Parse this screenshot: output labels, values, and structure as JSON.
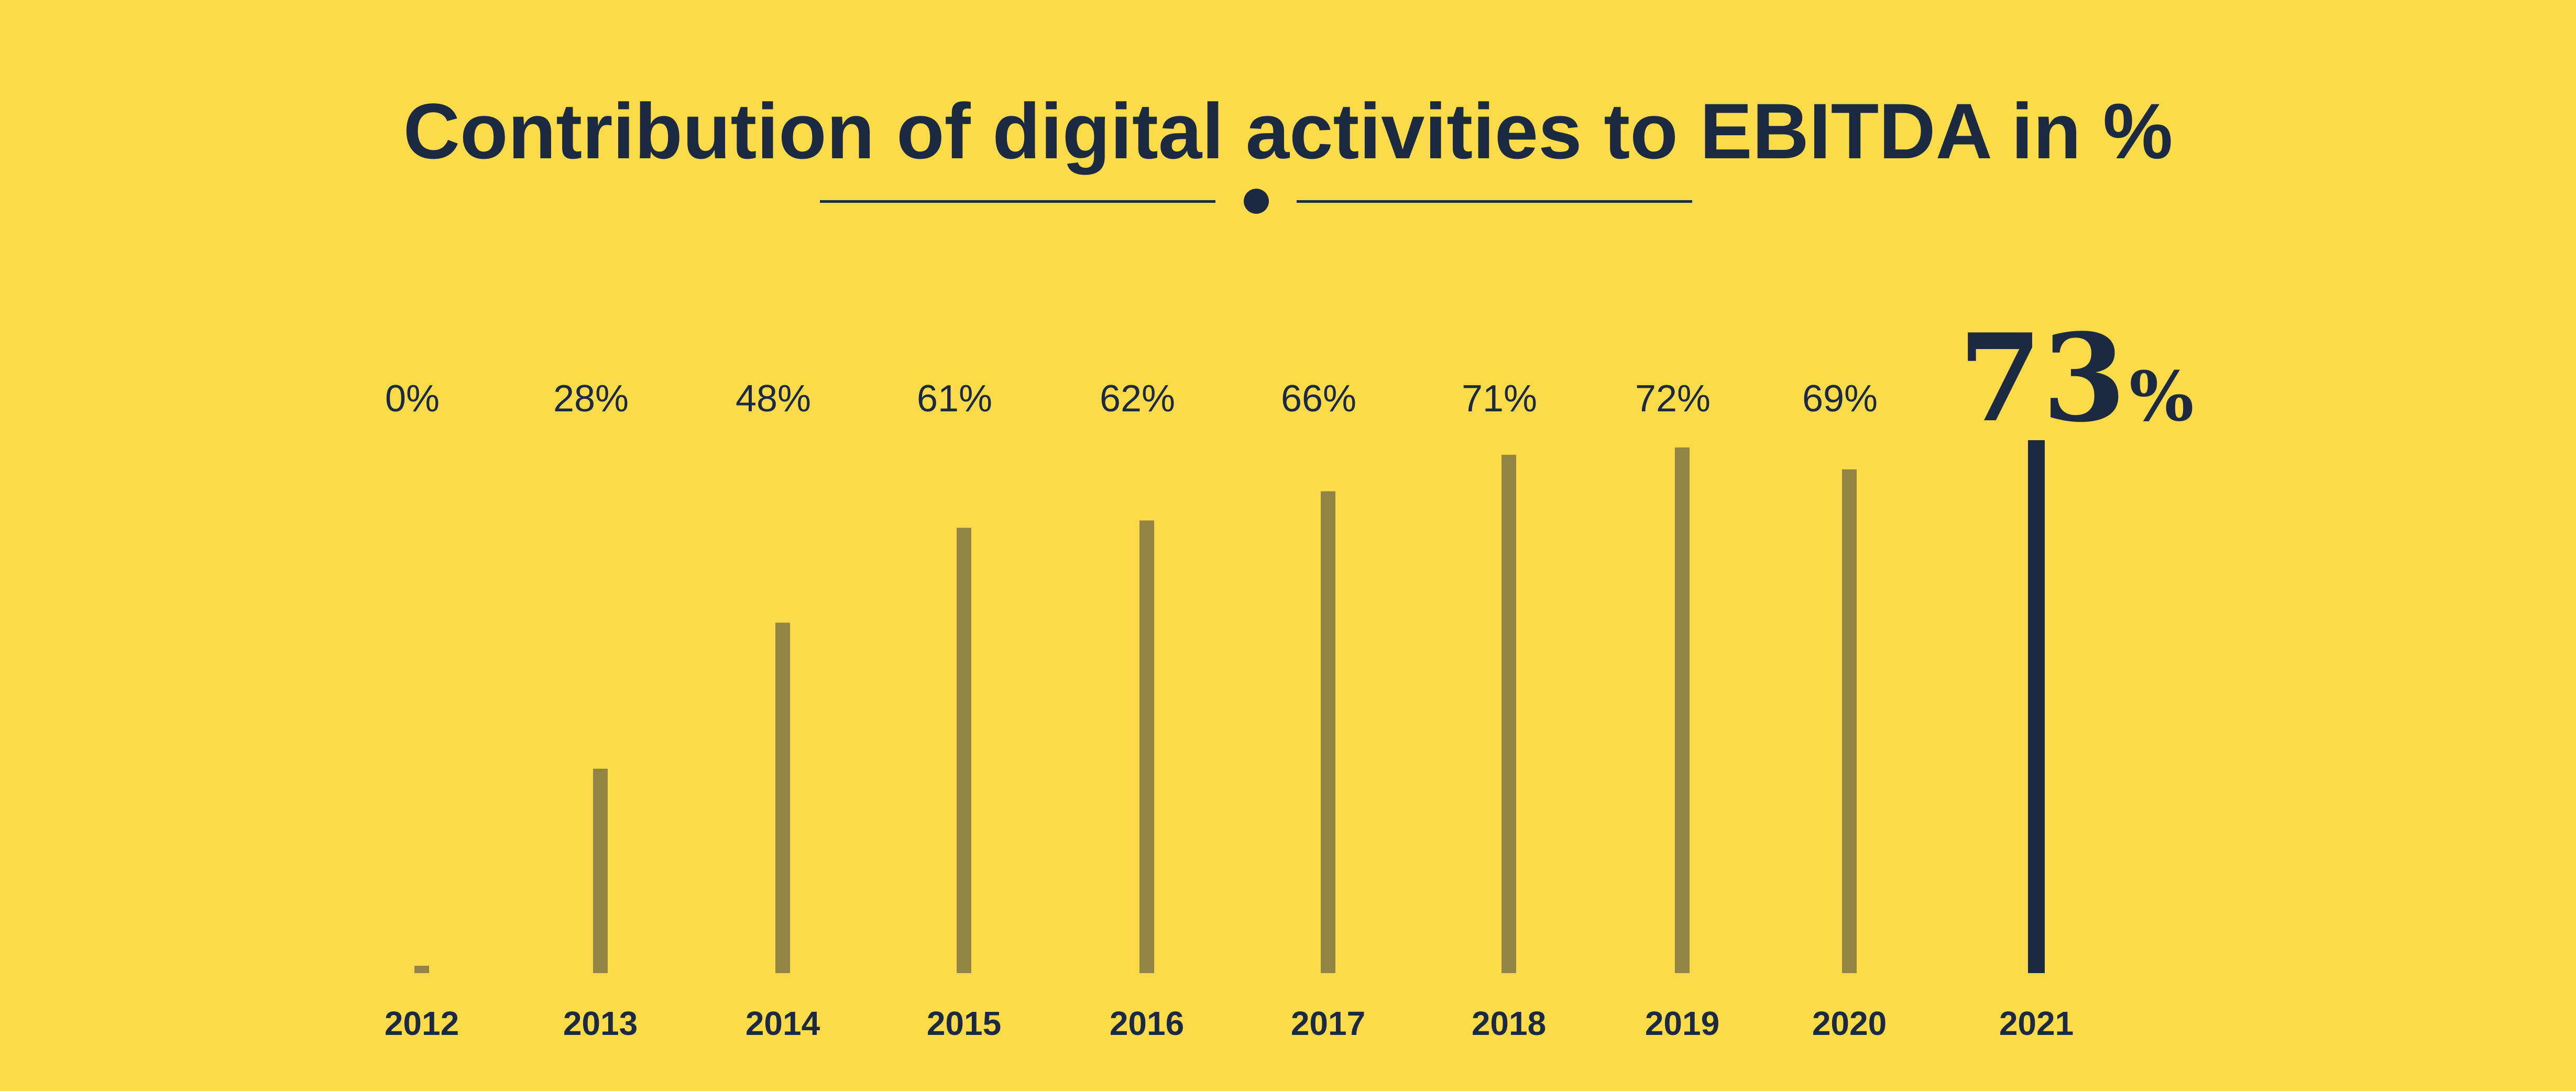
{
  "title": "Contribution of digital activities to EBITDA in %",
  "chart_data": {
    "type": "bar",
    "title": "Contribution of digital activities to EBITDA in %",
    "categories": [
      "2012",
      "2013",
      "2014",
      "2015",
      "2016",
      "2017",
      "2018",
      "2019",
      "2020",
      "2021"
    ],
    "values": [
      0,
      28,
      48,
      61,
      62,
      66,
      71,
      72,
      69,
      73
    ],
    "labels": [
      "0%",
      "28%",
      "48%",
      "61%",
      "62%",
      "66%",
      "71%",
      "72%",
      "69%"
    ],
    "highlight_label": {
      "value": "73",
      "unit": "%"
    },
    "highlight_index": 9,
    "xlabel": "",
    "ylabel": "",
    "ylim": [
      0,
      73
    ],
    "grid": false,
    "legend": "none",
    "colors": {
      "background": "#FCDB4A",
      "bar": "#928442",
      "highlight": "#1B2A41",
      "text": "#1B2A41"
    }
  }
}
